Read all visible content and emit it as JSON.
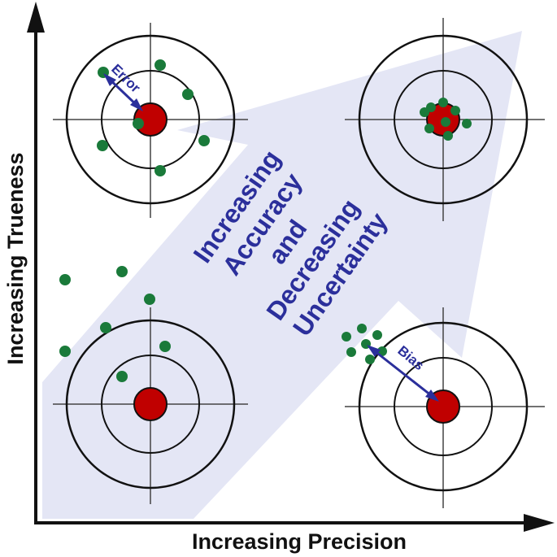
{
  "axes": {
    "x_label": "Increasing Precision",
    "y_label": "Increasing Trueness"
  },
  "banner": {
    "lines": [
      "Increasing",
      "Accuracy",
      "and",
      "Decreasing",
      "Uncertainty"
    ],
    "text_color": "#2b2f9b",
    "fill_color": "#e4e6f5"
  },
  "callouts": {
    "error_label": "Error",
    "bias_label": "Bias",
    "color": "#2b2f9b"
  },
  "targets": [
    {
      "id": "top-left",
      "quadrant": "high trueness, low precision",
      "hit_pattern": "spread around center"
    },
    {
      "id": "top-right",
      "quadrant": "high trueness, high precision",
      "hit_pattern": "tight cluster on center"
    },
    {
      "id": "bottom-left",
      "quadrant": "low trueness, low precision",
      "hit_pattern": "scattered off target"
    },
    {
      "id": "bottom-right",
      "quadrant": "low trueness, high precision",
      "hit_pattern": "tight cluster offset from center"
    }
  ],
  "colors": {
    "bullseye": "#c00000",
    "hit": "#1a7a3a",
    "ring": "#111111",
    "crosshair": "#444444",
    "axis": "#111111"
  }
}
